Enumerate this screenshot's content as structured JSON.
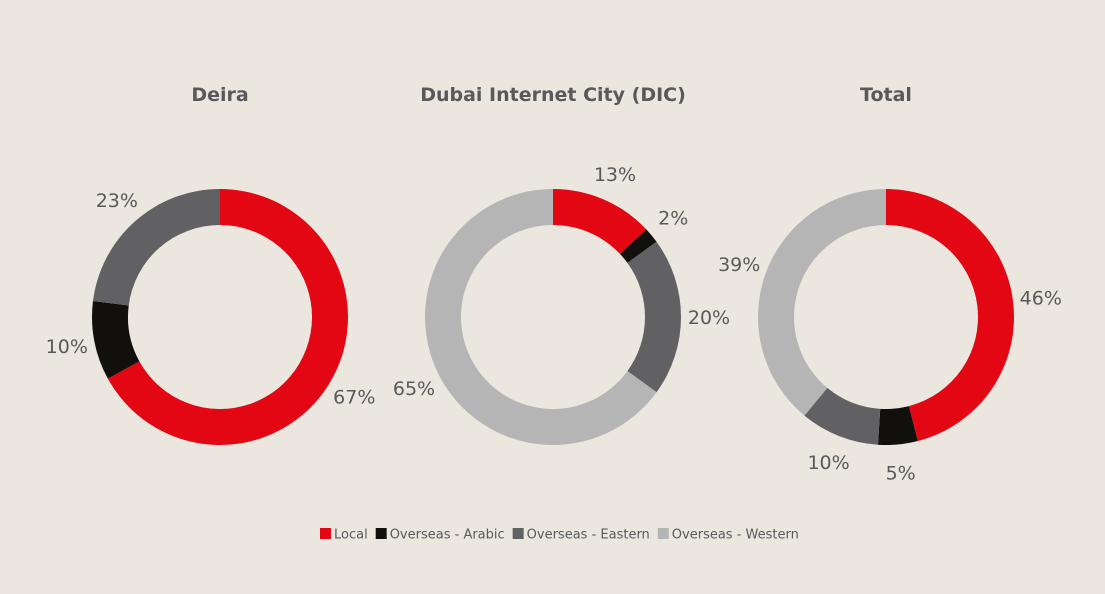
{
  "colors": {
    "background": "#ebe7df",
    "text": "#58595b"
  },
  "legend": {
    "placement": "bottom-center",
    "items": [
      {
        "label": "Local",
        "color": "#e30613"
      },
      {
        "label": "Overseas - Arabic",
        "color": "#11100d"
      },
      {
        "label": "Overseas - Eastern",
        "color": "#616164"
      },
      {
        "label": "Overseas - Western",
        "color": "#b5b5b5"
      }
    ]
  },
  "chart_data": [
    {
      "type": "pie",
      "style": "donut",
      "title": "Deira",
      "categories": [
        "Local",
        "Overseas - Arabic",
        "Overseas - Eastern",
        "Overseas - Western"
      ],
      "values": [
        67,
        10,
        23,
        0
      ],
      "labels": [
        "67%",
        "10%",
        "23%",
        ""
      ]
    },
    {
      "type": "pie",
      "style": "donut",
      "title": "Dubai Internet City (DIC)",
      "categories": [
        "Local",
        "Overseas - Arabic",
        "Overseas - Eastern",
        "Overseas - Western"
      ],
      "values": [
        13,
        2,
        20,
        65
      ],
      "labels": [
        "13%",
        "2%",
        "20%",
        "65%"
      ]
    },
    {
      "type": "pie",
      "style": "donut",
      "title": "Total",
      "categories": [
        "Local",
        "Overseas - Arabic",
        "Overseas - Eastern",
        "Overseas - Western"
      ],
      "values": [
        46,
        5,
        10,
        39
      ],
      "labels": [
        "46%",
        "5%",
        "10%",
        "39%"
      ]
    }
  ]
}
